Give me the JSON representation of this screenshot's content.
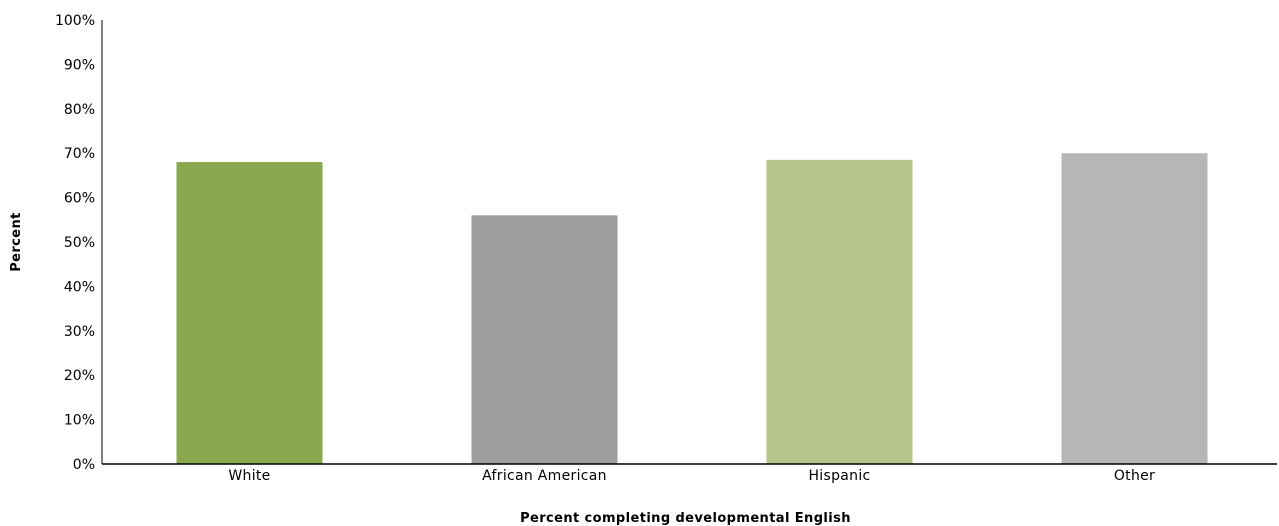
{
  "chart_data": {
    "type": "bar",
    "categories": [
      "White",
      "African American",
      "Hispanic",
      "Other"
    ],
    "values": [
      68,
      56,
      68.5,
      70
    ],
    "colors": [
      "#8aa84d",
      "#9d9d9d",
      "#b5c48a",
      "#b6b6b6"
    ],
    "xlabel": "Percent completing developmental English",
    "ylabel": "Percent",
    "ylim": [
      0,
      100
    ],
    "yticks": [
      "0%",
      "10%",
      "20%",
      "30%",
      "40%",
      "50%",
      "60%",
      "70%",
      "80%",
      "90%",
      "100%"
    ],
    "grid": false,
    "legend": "none"
  }
}
